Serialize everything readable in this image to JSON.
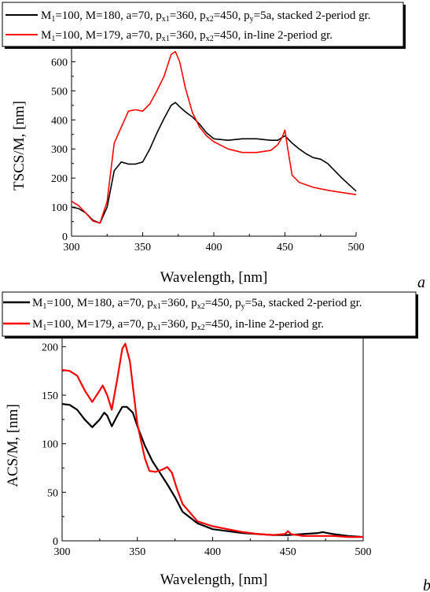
{
  "chart_data": [
    {
      "type": "line",
      "panel_label": "a",
      "xlabel": "Wavelength, [nm]",
      "ylabel": "TSCS/M, [nm]",
      "xlim": [
        300,
        500
      ],
      "ylim": [
        0,
        650
      ],
      "xticks": [
        "300",
        "350",
        "400",
        "450",
        "500"
      ],
      "yticks": [
        "0",
        "100",
        "200",
        "300",
        "400",
        "500",
        "600"
      ],
      "grid": false,
      "legend_position": "top",
      "series": [
        {
          "name": "M1=100, M=180, a=70, px1=360, px2=450, py=5a, stacked 2-period gr.",
          "color": "#000000",
          "x": [
            300,
            305,
            310,
            315,
            320,
            325,
            330,
            335,
            340,
            345,
            350,
            355,
            360,
            365,
            370,
            373,
            376,
            380,
            385,
            390,
            395,
            400,
            410,
            420,
            430,
            440,
            445,
            448,
            450,
            455,
            460,
            465,
            470,
            475,
            480,
            490,
            500
          ],
          "y": [
            100,
            95,
            80,
            55,
            45,
            100,
            225,
            255,
            248,
            248,
            255,
            300,
            355,
            405,
            450,
            460,
            445,
            428,
            410,
            385,
            355,
            335,
            330,
            335,
            335,
            330,
            330,
            340,
            345,
            320,
            300,
            283,
            270,
            265,
            250,
            200,
            155
          ]
        },
        {
          "name": "M1=100, M=179, a=70, px1=360, px2=450, in-line 2-period gr.",
          "color": "#ff0000",
          "x": [
            300,
            305,
            310,
            315,
            320,
            325,
            330,
            335,
            340,
            345,
            350,
            355,
            360,
            365,
            370,
            373,
            376,
            380,
            385,
            390,
            395,
            400,
            410,
            420,
            430,
            440,
            445,
            448,
            450,
            452,
            455,
            460,
            470,
            480,
            490,
            500
          ],
          "y": [
            120,
            105,
            80,
            52,
            45,
            120,
            320,
            375,
            430,
            435,
            430,
            455,
            500,
            550,
            625,
            635,
            600,
            510,
            425,
            375,
            345,
            325,
            300,
            288,
            288,
            295,
            315,
            340,
            365,
            300,
            210,
            185,
            168,
            158,
            150,
            143
          ]
        }
      ]
    },
    {
      "type": "line",
      "panel_label": "b",
      "xlabel": "Wavelength, [nm]",
      "ylabel": "ACS/M, [nm]",
      "xlim": [
        300,
        500
      ],
      "ylim": [
        0,
        210
      ],
      "xticks": [
        "300",
        "350",
        "400",
        "450",
        "500"
      ],
      "yticks": [
        "0",
        "50",
        "100",
        "150",
        "200"
      ],
      "grid": false,
      "legend_position": "top",
      "series": [
        {
          "name": "M1=100, M=180, a=70, px1=360, px2=450, py=5a, stacked 2-period gr.",
          "color": "#000000",
          "x": [
            300,
            305,
            310,
            315,
            320,
            325,
            328,
            330,
            333,
            337,
            340,
            343,
            347,
            350,
            355,
            360,
            365,
            370,
            375,
            380,
            390,
            400,
            410,
            420,
            430,
            440,
            450,
            460,
            470,
            473,
            480,
            490,
            500
          ],
          "y": [
            141,
            140,
            135,
            125,
            117,
            125,
            132,
            129,
            118,
            130,
            138,
            138,
            132,
            118,
            98,
            82,
            70,
            58,
            45,
            30,
            18,
            12,
            10,
            8,
            7,
            6,
            6,
            7,
            8,
            9,
            7,
            5,
            4
          ]
        },
        {
          "name": "M1=100, M=179, a=70, px1=360, px2=450, in-line 2-period gr.",
          "color": "#ff0000",
          "x": [
            300,
            305,
            310,
            315,
            320,
            325,
            327,
            330,
            333,
            337,
            340,
            342,
            345,
            350,
            355,
            358,
            362,
            366,
            370,
            373,
            376,
            380,
            390,
            400,
            410,
            420,
            430,
            440,
            448,
            450,
            452,
            460,
            470,
            480,
            490,
            500
          ],
          "y": [
            176,
            175,
            170,
            155,
            143,
            155,
            160,
            150,
            135,
            170,
            198,
            203,
            185,
            120,
            85,
            72,
            71,
            73,
            76,
            70,
            55,
            38,
            20,
            15,
            12,
            9,
            7,
            6,
            7,
            10,
            7,
            5,
            5,
            5,
            4,
            4
          ]
        }
      ]
    }
  ]
}
